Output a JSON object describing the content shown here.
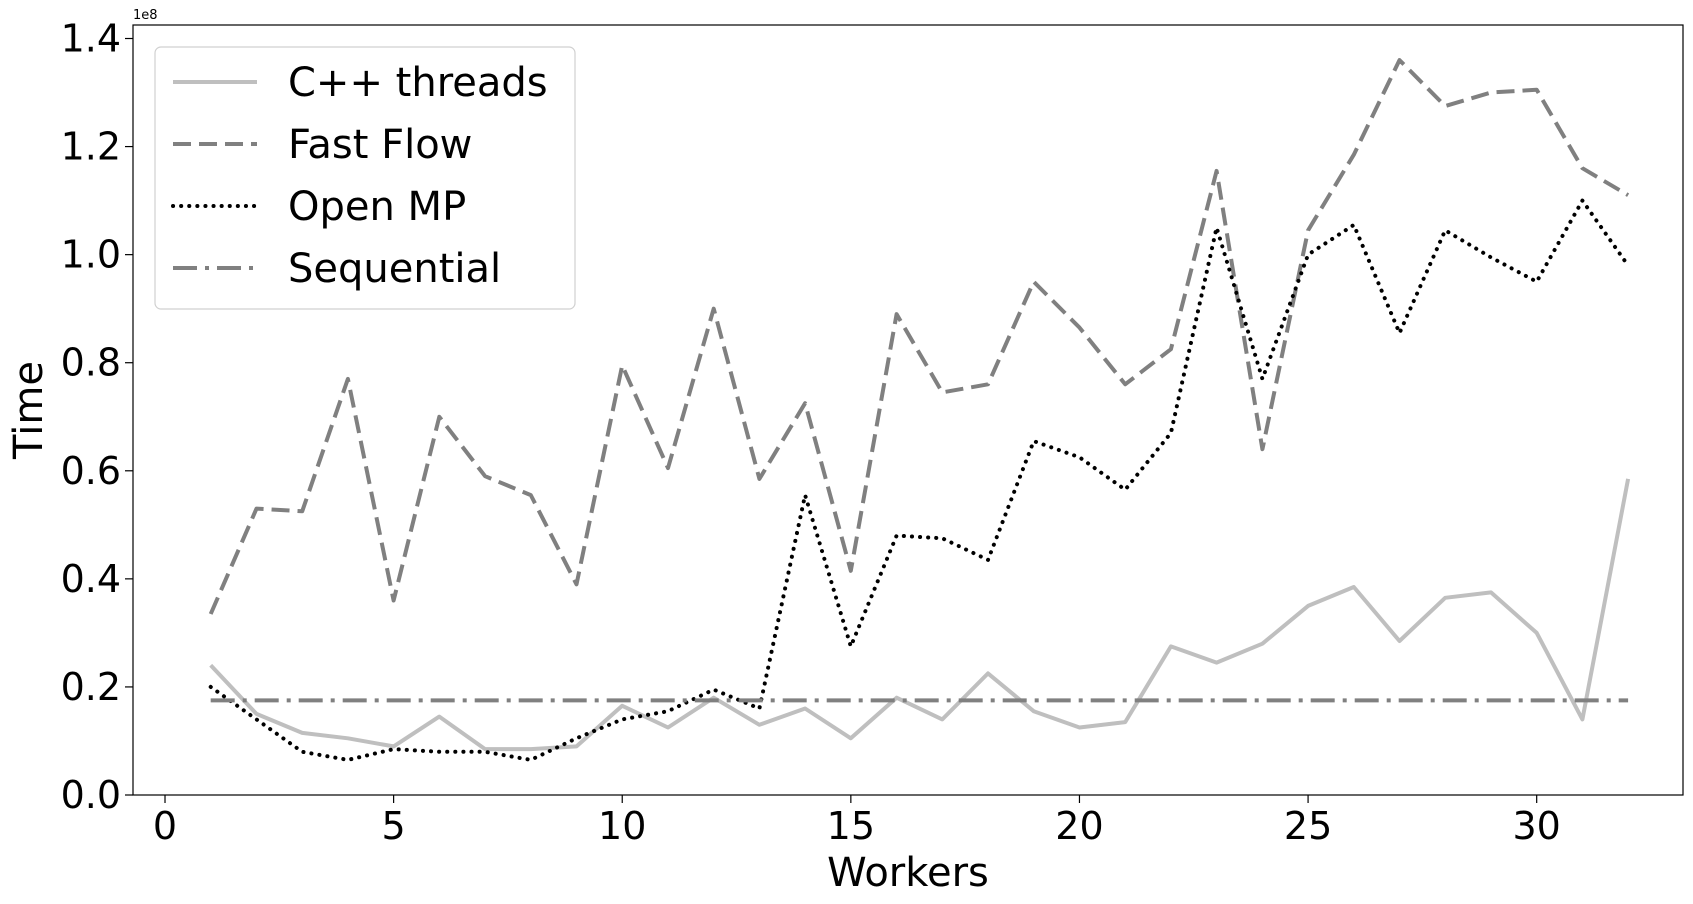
{
  "chart_data": {
    "type": "line",
    "title": "",
    "xlabel": "Workers",
    "ylabel": "Time",
    "y_offset_label": "1e8",
    "xlim": [
      -0.7,
      33.2
    ],
    "ylim": [
      0.0,
      1.425
    ],
    "x_ticks": [
      0,
      5,
      10,
      15,
      20,
      25,
      30
    ],
    "x_tick_labels": [
      "0",
      "5",
      "10",
      "15",
      "20",
      "25",
      "30"
    ],
    "y_ticks": [
      0.0,
      0.2,
      0.4,
      0.6,
      0.8,
      1.0,
      1.2,
      1.4
    ],
    "y_tick_labels": [
      "0.0",
      "0.2",
      "0.4",
      "0.6",
      "0.8",
      "1.0",
      "1.2",
      "1.4"
    ],
    "grid": false,
    "legend_position": "top-left",
    "x": [
      1,
      2,
      3,
      4,
      5,
      6,
      7,
      8,
      9,
      10,
      11,
      12,
      13,
      14,
      15,
      16,
      17,
      18,
      19,
      20,
      21,
      22,
      23,
      24,
      25,
      26,
      27,
      28,
      29,
      30,
      31,
      32
    ],
    "series": [
      {
        "name": "C++ threads",
        "color": "#bfbfbf",
        "style": "solid",
        "values": [
          0.24,
          0.15,
          0.115,
          0.105,
          0.09,
          0.145,
          0.085,
          0.085,
          0.09,
          0.165,
          0.125,
          0.18,
          0.13,
          0.16,
          0.105,
          0.18,
          0.14,
          0.225,
          0.155,
          0.125,
          0.135,
          0.275,
          0.245,
          0.28,
          0.35,
          0.385,
          0.285,
          0.365,
          0.375,
          0.3,
          0.14,
          0.585
        ]
      },
      {
        "name": "Fast Flow",
        "color": "#808080",
        "style": "dashed",
        "values": [
          0.335,
          0.53,
          0.525,
          0.77,
          0.36,
          0.7,
          0.59,
          0.555,
          0.39,
          0.795,
          0.605,
          0.9,
          0.585,
          0.725,
          0.415,
          0.89,
          0.745,
          0.76,
          0.95,
          0.865,
          0.76,
          0.825,
          1.155,
          0.64,
          1.045,
          1.185,
          1.36,
          1.275,
          1.3,
          1.305,
          1.16,
          1.11
        ]
      },
      {
        "name": "Open MP",
        "color": "#000000",
        "style": "dotted",
        "values": [
          0.2,
          0.14,
          0.08,
          0.065,
          0.085,
          0.08,
          0.08,
          0.065,
          0.105,
          0.14,
          0.155,
          0.195,
          0.16,
          0.555,
          0.275,
          0.48,
          0.475,
          0.435,
          0.655,
          0.625,
          0.565,
          0.67,
          1.05,
          0.77,
          1.0,
          1.055,
          0.855,
          1.045,
          0.995,
          0.95,
          1.1,
          0.98
        ]
      },
      {
        "name": "Sequential",
        "color": "#808080",
        "style": "dashdot",
        "values": [
          0.175,
          0.175,
          0.175,
          0.175,
          0.175,
          0.175,
          0.175,
          0.175,
          0.175,
          0.175,
          0.175,
          0.175,
          0.175,
          0.175,
          0.175,
          0.175,
          0.175,
          0.175,
          0.175,
          0.175,
          0.175,
          0.175,
          0.175,
          0.175,
          0.175,
          0.175,
          0.175,
          0.175,
          0.175,
          0.175,
          0.175,
          0.175
        ]
      }
    ]
  }
}
